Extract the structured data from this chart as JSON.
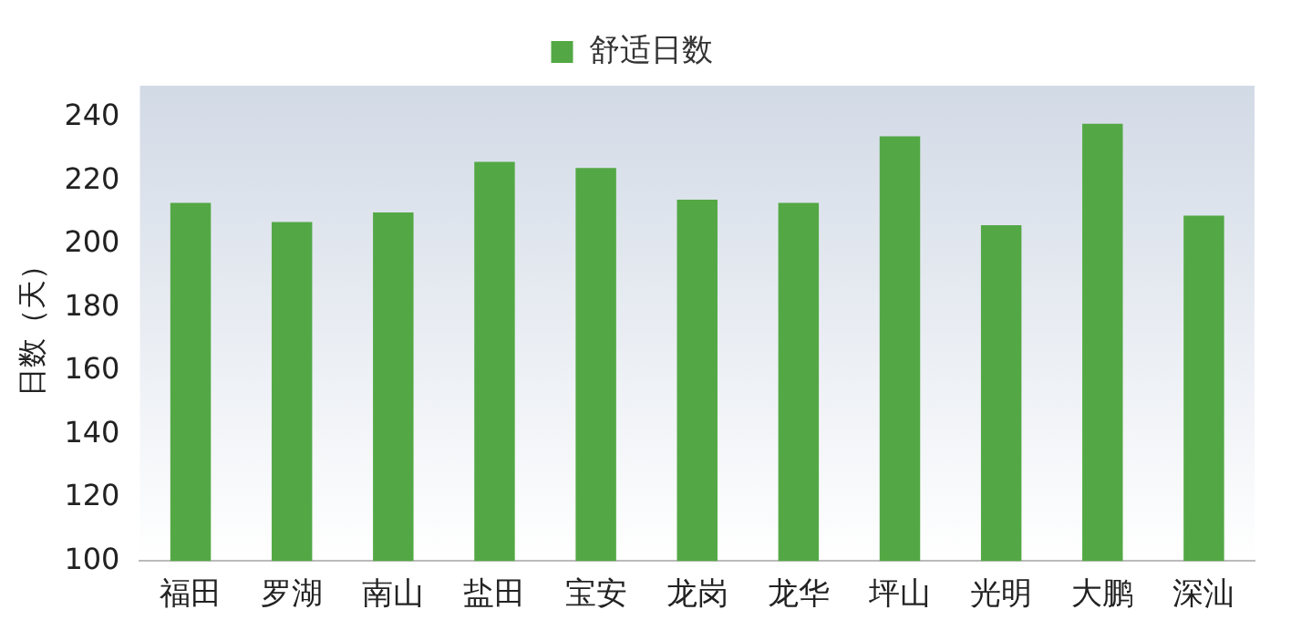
{
  "chart_data": {
    "type": "bar",
    "ylabel": "日数（天）",
    "categories": [
      "福田",
      "罗湖",
      "南山",
      "盐田",
      "宝安",
      "龙岗",
      "龙华",
      "坪山",
      "光明",
      "大鹏",
      "深汕"
    ],
    "series": [
      {
        "name": "舒适日数",
        "color": "#53a845",
        "values": [
          213,
          207,
          210,
          226,
          224,
          214,
          213,
          234,
          206,
          238,
          209
        ]
      }
    ],
    "ylim": [
      100,
      250
    ],
    "yticks": [
      100,
      120,
      140,
      160,
      180,
      200,
      220,
      240
    ],
    "grid": false,
    "legend": "top"
  }
}
